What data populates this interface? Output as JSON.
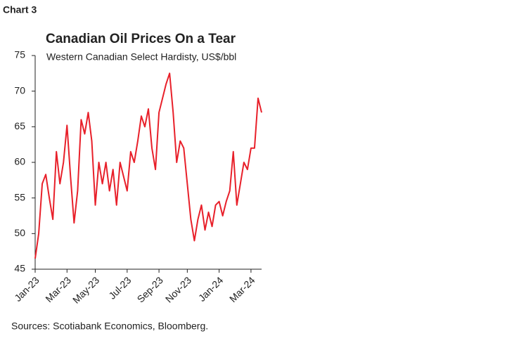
{
  "chart_data": {
    "type": "line",
    "heading": "Chart 3",
    "title": "Canadian Oil Prices On a Tear",
    "subtitle": "Western Canadian Select Hardisty, US$/bbl",
    "source": "Sources: Scotiabank Economics, Bloomberg.",
    "categories": [
      "Jan-23",
      null,
      null,
      null,
      null,
      null,
      null,
      null,
      null,
      "Mar-23",
      null,
      null,
      null,
      null,
      null,
      null,
      null,
      "May-23",
      null,
      null,
      null,
      null,
      null,
      null,
      null,
      null,
      "Jul-23",
      null,
      null,
      null,
      null,
      null,
      null,
      null,
      null,
      "Sep-23",
      null,
      null,
      null,
      null,
      null,
      null,
      null,
      "Nov-23",
      null,
      null,
      null,
      null,
      null,
      null,
      null,
      null,
      "Jan-24",
      null,
      null,
      null,
      null,
      null,
      null,
      null,
      null,
      "Mar-24",
      null,
      null,
      null
    ],
    "values": [
      46.5,
      50,
      57,
      58.3,
      55,
      52,
      61.5,
      57,
      60,
      65.2,
      58,
      51.5,
      56,
      66,
      64,
      67,
      63,
      54,
      60,
      57,
      60,
      56,
      59,
      54,
      60,
      58,
      56,
      61.5,
      60,
      63,
      66.5,
      65,
      67.5,
      62,
      59,
      67,
      69,
      71,
      72.5,
      67,
      60,
      63,
      62,
      57,
      52,
      49,
      52,
      54,
      50.5,
      53,
      51,
      54,
      54.5,
      52.5,
      54.5,
      56,
      61.5,
      54,
      57,
      60,
      59,
      62,
      62,
      69,
      67
    ],
    "color": "#e8202a",
    "ylim": [
      45,
      75
    ],
    "yticks": [
      45,
      50,
      55,
      60,
      65,
      70,
      75
    ],
    "grid": false
  }
}
